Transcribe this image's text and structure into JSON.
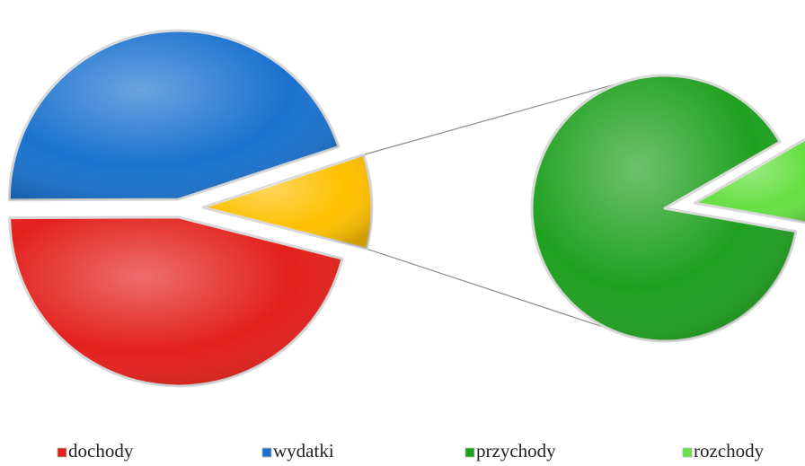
{
  "chart_data": {
    "type": "pie_of_pie",
    "categories": [
      "dochody",
      "wydatki",
      "przychody",
      "rozchody"
    ],
    "values": [
      46,
      45,
      8,
      1
    ],
    "colors": [
      "#e3201c",
      "#1a72cf",
      "#1fa01f",
      "#66e043"
    ],
    "other_color": "#ffc000",
    "secondary_count": 2,
    "legend": "bottom"
  }
}
